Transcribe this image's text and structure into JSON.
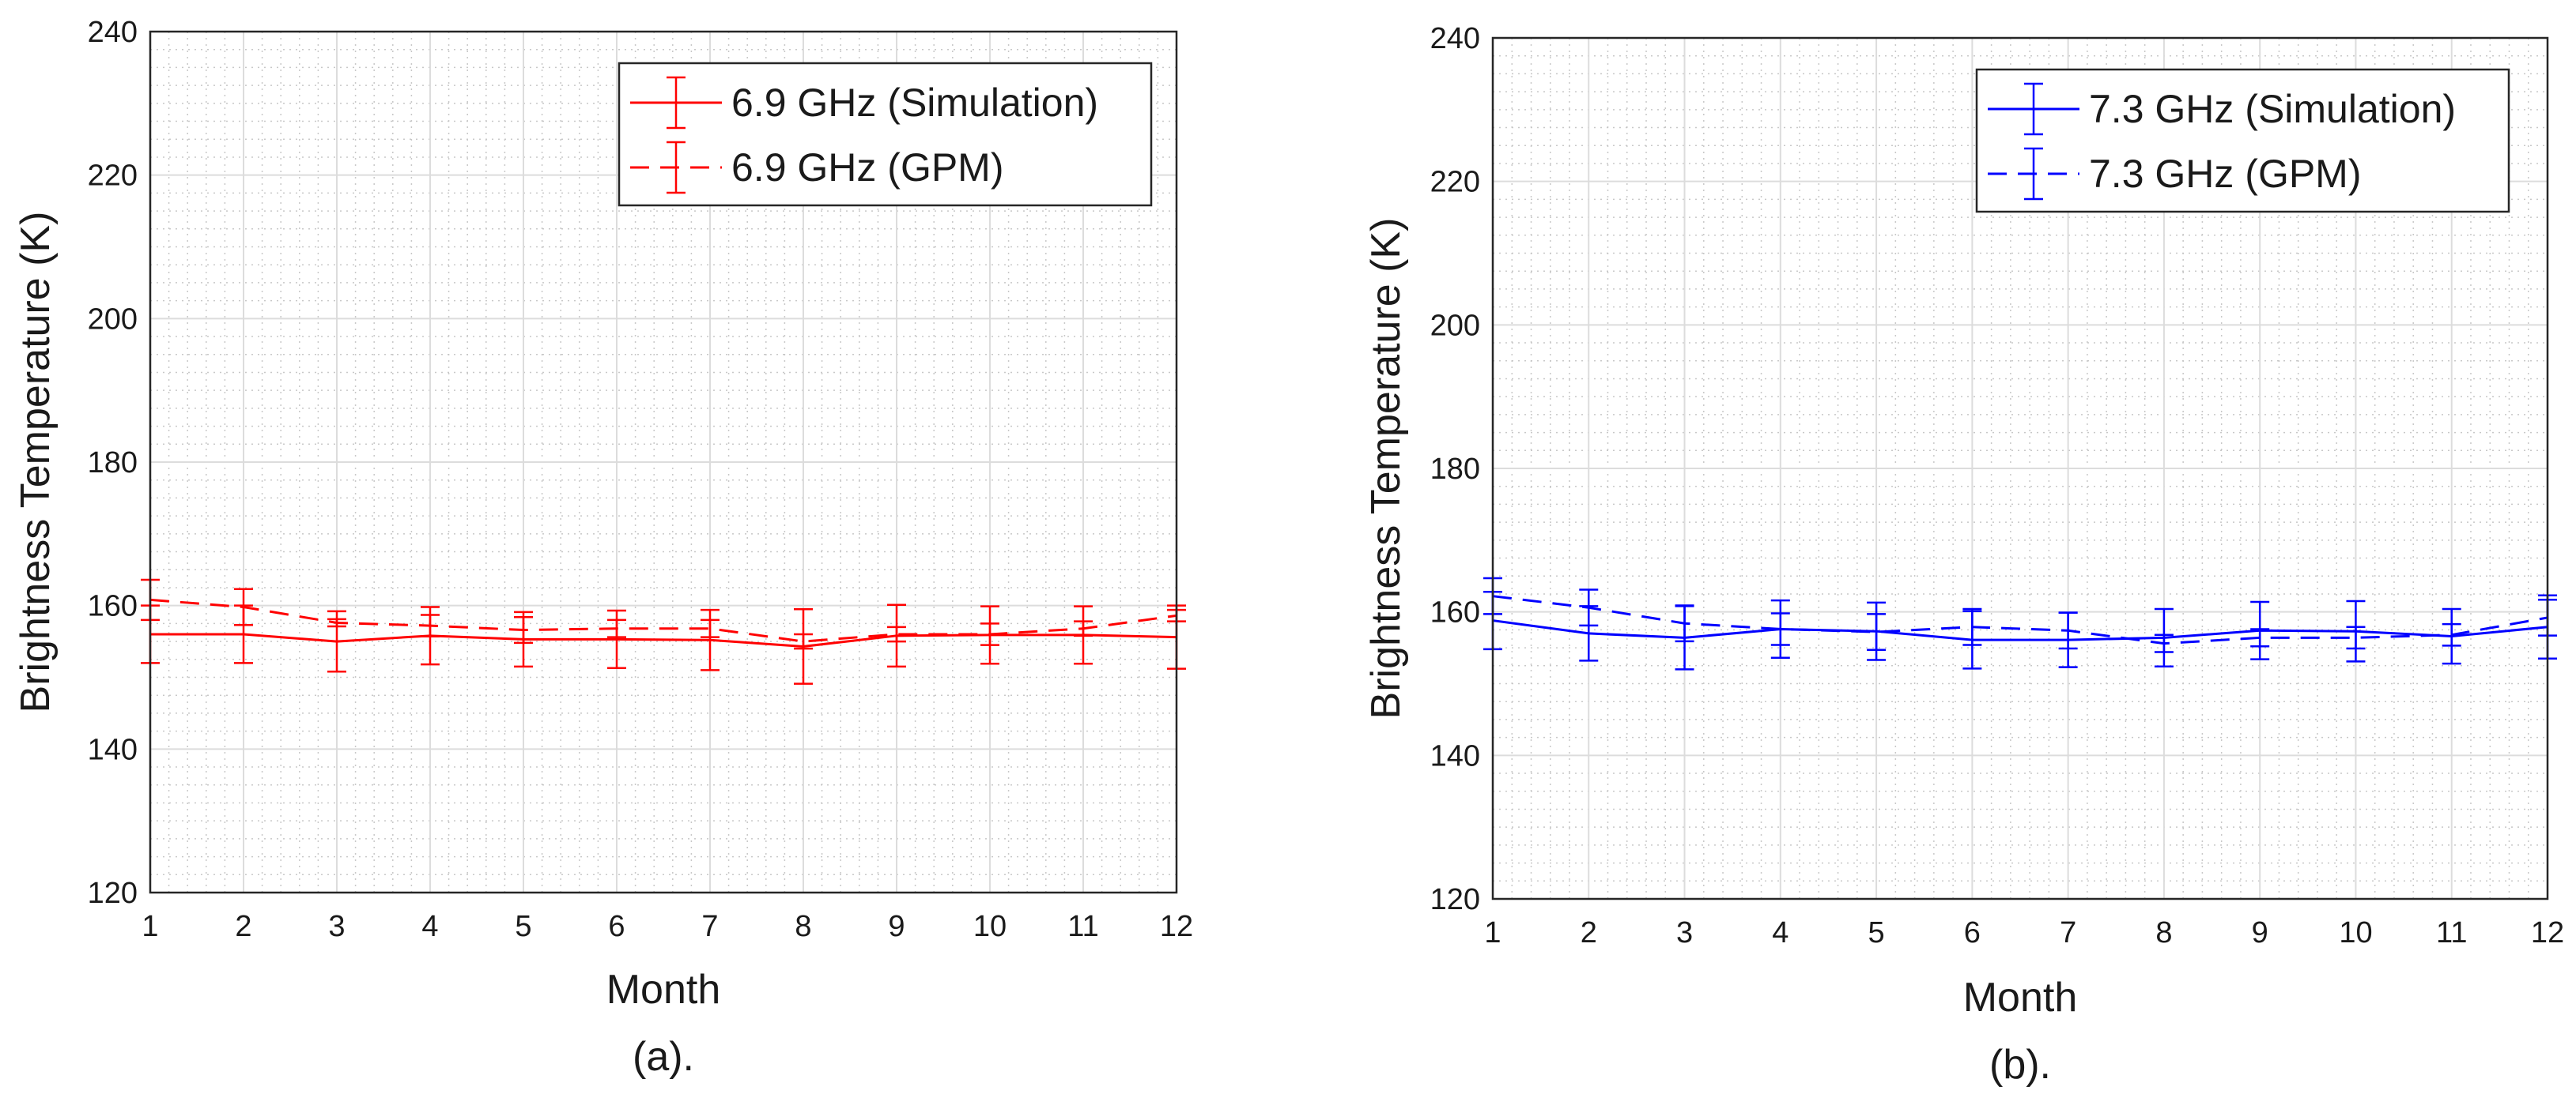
{
  "chart_data": [
    {
      "type": "line",
      "caption": "(a).",
      "xlabel": "Month",
      "ylabel": "Brightness Temperature  (K)",
      "xlim": [
        1,
        12
      ],
      "ylim": [
        120,
        240
      ],
      "xticks": [
        "1",
        "2",
        "3",
        "4",
        "5",
        "6",
        "7",
        "8",
        "9",
        "10",
        "11",
        "12"
      ],
      "yticks": [
        "120",
        "140",
        "160",
        "180",
        "200",
        "220",
        "240"
      ],
      "grid": true,
      "minor_grid": true,
      "legend_position": "top-right",
      "color": "#ff0000",
      "x": [
        1,
        2,
        3,
        4,
        5,
        6,
        7,
        8,
        9,
        10,
        11,
        12
      ],
      "series": [
        {
          "name": "6.9 GHz (Simulation)",
          "style": "solid",
          "values": [
            156.0,
            156.0,
            155.0,
            155.8,
            155.3,
            155.3,
            155.2,
            154.3,
            155.8,
            155.9,
            155.9,
            155.6
          ],
          "error": [
            4.0,
            4.0,
            4.2,
            4.0,
            3.8,
            4.0,
            4.2,
            5.2,
            4.3,
            4.0,
            4.0,
            4.4
          ]
        },
        {
          "name": "6.9 GHz (GPM)",
          "style": "dashed",
          "values": [
            160.8,
            159.8,
            157.6,
            157.2,
            156.6,
            156.8,
            156.8,
            155.0,
            156.0,
            156.0,
            156.8,
            158.6
          ],
          "error": [
            2.8,
            2.5,
            0.5,
            1.5,
            1.8,
            1.2,
            1.2,
            1.0,
            1.0,
            1.5,
            1.0,
            0.8
          ]
        }
      ]
    },
    {
      "type": "line",
      "caption": "(b).",
      "xlabel": "Month",
      "ylabel": "Brightness Temperature  (K)",
      "xlim": [
        1,
        12
      ],
      "ylim": [
        120,
        240
      ],
      "xticks": [
        "1",
        "2",
        "3",
        "4",
        "5",
        "6",
        "7",
        "8",
        "9",
        "10",
        "11",
        "12"
      ],
      "yticks": [
        "120",
        "140",
        "160",
        "180",
        "200",
        "220",
        "240"
      ],
      "grid": true,
      "minor_grid": true,
      "legend_position": "top-right",
      "color": "#0000ff",
      "x": [
        1,
        2,
        3,
        4,
        5,
        6,
        7,
        8,
        9,
        10,
        11,
        12
      ],
      "series": [
        {
          "name": "7.3 GHz (Simulation)",
          "style": "solid",
          "values": [
            158.8,
            157.0,
            156.4,
            157.6,
            157.3,
            156.1,
            156.1,
            156.4,
            157.4,
            157.3,
            156.6,
            157.9
          ],
          "error": [
            4.0,
            3.8,
            4.4,
            4.0,
            4.0,
            4.0,
            3.8,
            4.0,
            4.0,
            4.2,
            3.8,
            4.4
          ]
        },
        {
          "name": "7.3 GHz (GPM)",
          "style": "dashed",
          "values": [
            162.2,
            160.6,
            158.4,
            157.6,
            157.2,
            157.9,
            157.4,
            155.6,
            156.4,
            156.4,
            156.8,
            159.2
          ],
          "error": [
            2.5,
            2.5,
            2.5,
            2.2,
            2.5,
            2.5,
            2.5,
            1.2,
            1.2,
            1.5,
            1.5,
            2.5
          ]
        }
      ]
    }
  ]
}
